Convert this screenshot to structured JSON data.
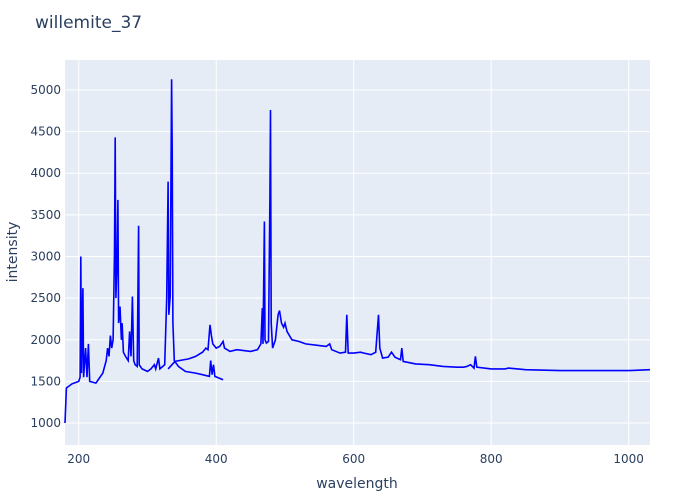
{
  "chart_data": {
    "type": "line",
    "title": "willemite_37",
    "xlabel": "wavelength",
    "ylabel": "intensity",
    "xlim": [
      180,
      1031
    ],
    "ylim": [
      736,
      5360
    ],
    "xticks": [
      200,
      400,
      600,
      800,
      1000
    ],
    "yticks": [
      1000,
      1500,
      2000,
      2500,
      3000,
      3500,
      4000,
      4500,
      5000
    ],
    "grid": true,
    "line_color": "#0000ff",
    "plot_bg": "#e5ecf6",
    "series": [
      {
        "x": [
          180,
          182,
          190,
          200,
          202,
          203,
          204,
          206,
          207,
          210,
          212,
          214,
          216,
          225,
          235,
          240,
          242,
          244,
          246,
          248,
          250,
          252,
          253,
          254,
          256,
          257,
          258,
          260,
          262,
          263,
          265,
          268,
          272,
          274,
          276,
          278,
          280,
          282,
          285,
          287,
          288,
          292,
          300,
          305,
          310,
          312,
          316,
          318,
          325,
          328,
          330,
          331,
          333,
          335,
          336,
          337,
          339,
          345,
          355,
          370,
          380,
          390,
          392,
          394,
          396,
          398,
          410,
          330,
          340,
          360,
          370,
          380,
          385,
          388,
          391,
          393,
          395,
          400,
          405,
          410,
          412,
          420,
          430,
          440,
          450,
          460,
          465,
          467,
          468,
          470,
          471,
          473,
          476,
          478,
          479,
          480,
          482,
          486,
          490,
          492,
          495,
          498,
          500,
          503,
          510,
          520,
          530,
          550,
          560,
          565,
          568,
          580,
          588,
          590,
          592,
          600,
          610,
          615,
          625,
          632,
          636,
          638,
          642,
          650,
          655,
          660,
          668,
          670,
          672,
          690,
          710,
          730,
          750,
          760,
          765,
          770,
          775,
          777,
          779,
          800,
          820,
          825,
          850,
          900,
          950,
          1000,
          1031
        ],
        "y": [
          1000,
          1420,
          1470,
          1500,
          1550,
          3000,
          1600,
          2620,
          1550,
          1900,
          1550,
          1950,
          1500,
          1480,
          1600,
          1750,
          1900,
          1800,
          2050,
          1900,
          2000,
          3050,
          4430,
          2500,
          3000,
          3680,
          2200,
          2400,
          2000,
          2200,
          1850,
          1800,
          1750,
          2100,
          1800,
          2520,
          1750,
          1700,
          1680,
          3370,
          1700,
          1650,
          1620,
          1650,
          1700,
          1650,
          1780,
          1650,
          1700,
          2500,
          3900,
          2300,
          2520,
          5130,
          4300,
          2200,
          1750,
          1680,
          1620,
          1600,
          1580,
          1560,
          1750,
          1580,
          1700,
          1560,
          1520,
          1650,
          1740,
          1770,
          1800,
          1850,
          1900,
          1880,
          2180,
          2050,
          1950,
          1900,
          1920,
          1980,
          1900,
          1860,
          1880,
          1870,
          1860,
          1880,
          1950,
          2380,
          1950,
          3420,
          2000,
          1960,
          1980,
          3700,
          4760,
          2200,
          1900,
          2000,
          2300,
          2350,
          2200,
          2150,
          2200,
          2100,
          2000,
          1980,
          1950,
          1930,
          1920,
          1950,
          1880,
          1840,
          1850,
          2300,
          1840,
          1840,
          1850,
          1840,
          1820,
          1850,
          2300,
          1900,
          1780,
          1790,
          1850,
          1790,
          1760,
          1900,
          1740,
          1710,
          1700,
          1680,
          1670,
          1670,
          1680,
          1700,
          1660,
          1800,
          1670,
          1650,
          1650,
          1660,
          1640,
          1630,
          1630,
          1630,
          1640
        ]
      }
    ]
  }
}
